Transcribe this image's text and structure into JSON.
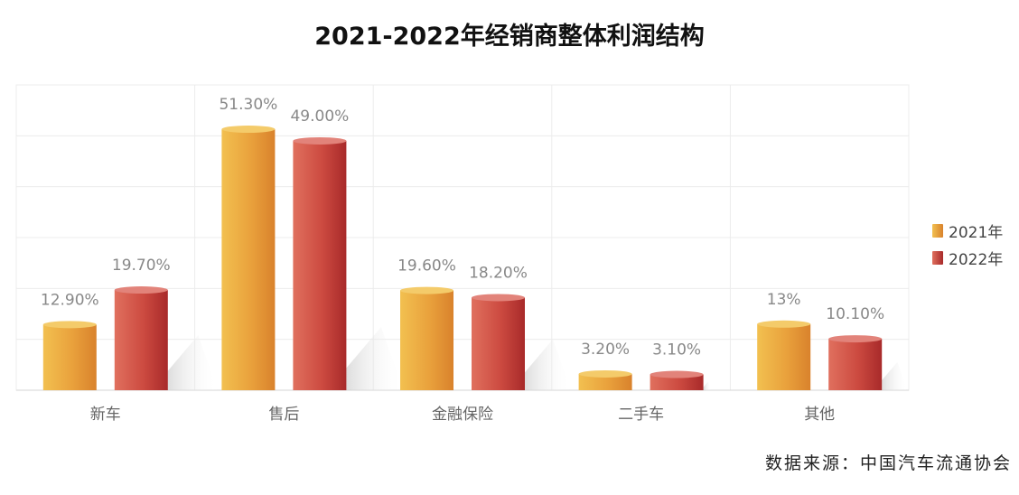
{
  "title": "2021-2022年经销商整体利润结构",
  "source": "数据来源：中国汽车流通协会",
  "chart_data": {
    "type": "bar",
    "title": "2021-2022年经销商整体利润结构",
    "categories": [
      "新车",
      "售后",
      "金融保险",
      "二手车",
      "其他"
    ],
    "series": [
      {
        "name": "2021年",
        "values": [
          12.9,
          51.3,
          19.6,
          3.2,
          13
        ],
        "labels": [
          "12.90%",
          "51.30%",
          "19.60%",
          "3.20%",
          "13%"
        ],
        "color": "#E8A43A"
      },
      {
        "name": "2022年",
        "values": [
          19.7,
          49.0,
          18.2,
          3.1,
          10.1
        ],
        "labels": [
          "19.70%",
          "49.00%",
          "18.20%",
          "3.10%",
          "10.10%"
        ],
        "color": "#C9403B"
      }
    ],
    "ylim": [
      0,
      60
    ],
    "grid": true,
    "legend_position": "right"
  }
}
